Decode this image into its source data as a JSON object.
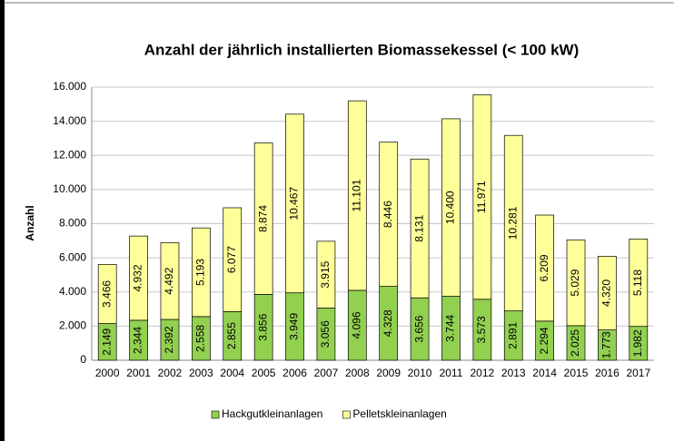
{
  "chart_data": {
    "type": "stacked_bar",
    "title": "Anzahl der jährlich installierten Biomassekessel (< 100 kW)",
    "y_label": "Anzahl",
    "categories": [
      "2000",
      "2001",
      "2002",
      "2003",
      "2004",
      "2005",
      "2006",
      "2007",
      "2008",
      "2009",
      "2010",
      "2011",
      "2012",
      "2013",
      "2014",
      "2015",
      "2016",
      "2017"
    ],
    "series": [
      {
        "name": "Hackgutkleinanlagen",
        "color": "#92d050",
        "values": [
          2149,
          2344,
          2392,
          2558,
          2855,
          3856,
          3949,
          3056,
          4096,
          4328,
          3656,
          3744,
          3573,
          2891,
          2294,
          2025,
          1773,
          1982
        ],
        "value_labels": [
          "2.149",
          "2.344",
          "2.392",
          "2.558",
          "2.855",
          "3.856",
          "3.949",
          "3.056",
          "4.096",
          "4.328",
          "3.656",
          "3.744",
          "3.573",
          "2.891",
          "2.294",
          "2.025",
          "1.773",
          "1.982"
        ]
      },
      {
        "name": "Pelletskleinanlagen",
        "color": "#ffff99",
        "values": [
          3466,
          4932,
          4492,
          5193,
          6077,
          8874,
          10467,
          3915,
          11101,
          8446,
          8131,
          10400,
          11971,
          10281,
          6209,
          5029,
          4320,
          5118
        ],
        "value_labels": [
          "3.466",
          "4.932",
          "4.492",
          "5.193",
          "6.077",
          "8.874",
          "10.467",
          "3.915",
          "11.101",
          "8.446",
          "8.131",
          "10.400",
          "11.971",
          "10.281",
          "6.209",
          "5.029",
          "4.320",
          "5.118"
        ]
      }
    ],
    "ylim": [
      0,
      16000
    ],
    "yticks": [
      0,
      {
        "value": 2000,
        "label": "2.000"
      },
      {
        "value": 4000,
        "label": "4.000"
      },
      {
        "value": 6000,
        "label": "6.000"
      },
      {
        "value": 8000,
        "label": "8.000"
      },
      {
        "value": 10000,
        "label": "10.000"
      },
      {
        "value": 12000,
        "label": "12.000"
      },
      {
        "value": 14000,
        "label": "14.000"
      },
      {
        "value": 16000,
        "label": "16.000"
      }
    ],
    "grid": true,
    "legend": "bottom"
  }
}
